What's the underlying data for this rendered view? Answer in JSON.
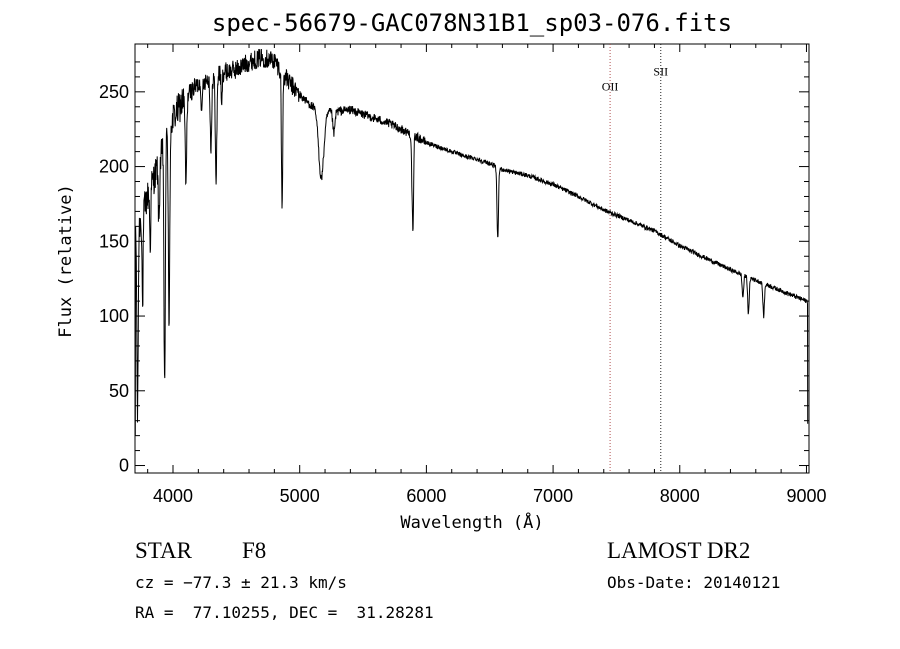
{
  "chart_data": {
    "type": "line",
    "title": "spec-56679-GAC078N31B1_sp03-076.fits",
    "xlabel": "Wavelength (Å)",
    "ylabel": "Flux (relative)",
    "xlim": [
      3700,
      9020
    ],
    "ylim": [
      -5,
      282
    ],
    "xticks": [
      4000,
      5000,
      6000,
      7000,
      8000,
      9000
    ],
    "yticks": [
      0,
      50,
      100,
      150,
      200,
      250
    ],
    "continuum": [
      [
        3700,
        150
      ],
      [
        3800,
        180
      ],
      [
        3900,
        205
      ],
      [
        4000,
        232
      ],
      [
        4100,
        247
      ],
      [
        4200,
        255
      ],
      [
        4300,
        260
      ],
      [
        4400,
        263
      ],
      [
        4500,
        265
      ],
      [
        4600,
        270
      ],
      [
        4700,
        273
      ],
      [
        4800,
        271
      ],
      [
        4900,
        258
      ],
      [
        5000,
        248
      ],
      [
        5100,
        240
      ],
      [
        5200,
        236
      ],
      [
        5300,
        237
      ],
      [
        5400,
        238
      ],
      [
        5500,
        235
      ],
      [
        5600,
        232
      ],
      [
        5700,
        229
      ],
      [
        5800,
        225
      ],
      [
        5900,
        221
      ],
      [
        6000,
        216
      ],
      [
        6100,
        213
      ],
      [
        6200,
        210
      ],
      [
        6300,
        207
      ],
      [
        6400,
        205
      ],
      [
        6500,
        202
      ],
      [
        6600,
        198
      ],
      [
        6700,
        196
      ],
      [
        6800,
        194
      ],
      [
        6900,
        191
      ],
      [
        7000,
        188
      ],
      [
        7200,
        180
      ],
      [
        7400,
        171
      ],
      [
        7600,
        164
      ],
      [
        7800,
        157
      ],
      [
        8000,
        147
      ],
      [
        8200,
        139
      ],
      [
        8400,
        131
      ],
      [
        8600,
        124
      ],
      [
        8800,
        117
      ],
      [
        9000,
        110
      ]
    ],
    "absorption_lines": [
      [
        3720,
        5,
        122
      ],
      [
        3760,
        4,
        65
      ],
      [
        3820,
        4,
        40
      ],
      [
        3889,
        5,
        40
      ],
      [
        3934,
        5,
        170
      ],
      [
        3969,
        5,
        140
      ],
      [
        4102,
        6,
        60
      ],
      [
        4227,
        4,
        25
      ],
      [
        4300,
        6,
        50
      ],
      [
        4340,
        6,
        70
      ],
      [
        4384,
        4,
        25
      ],
      [
        4861,
        5,
        90
      ],
      [
        5170,
        20,
        45
      ],
      [
        5270,
        8,
        15
      ],
      [
        5890,
        6,
        45
      ],
      [
        5896,
        4,
        35
      ],
      [
        6563,
        6,
        48
      ],
      [
        8498,
        6,
        15
      ],
      [
        8542,
        6,
        25
      ],
      [
        8662,
        6,
        22
      ]
    ],
    "lines": [
      {
        "label": "OII",
        "wavelength": 7450,
        "label_flux": 251,
        "color": "#b05050"
      },
      {
        "label": "SII",
        "wavelength": 7850,
        "label_flux": 261,
        "color": "#222222"
      }
    ]
  },
  "info": {
    "class_label": "STAR",
    "subclass": "F8",
    "survey": "LAMOST DR2",
    "redshift": "cz = −77.3 ± 21.3 km/s",
    "obs_date": "Obs-Date: 20140121",
    "coords": "RA =  77.10255, DEC =  31.28281"
  }
}
